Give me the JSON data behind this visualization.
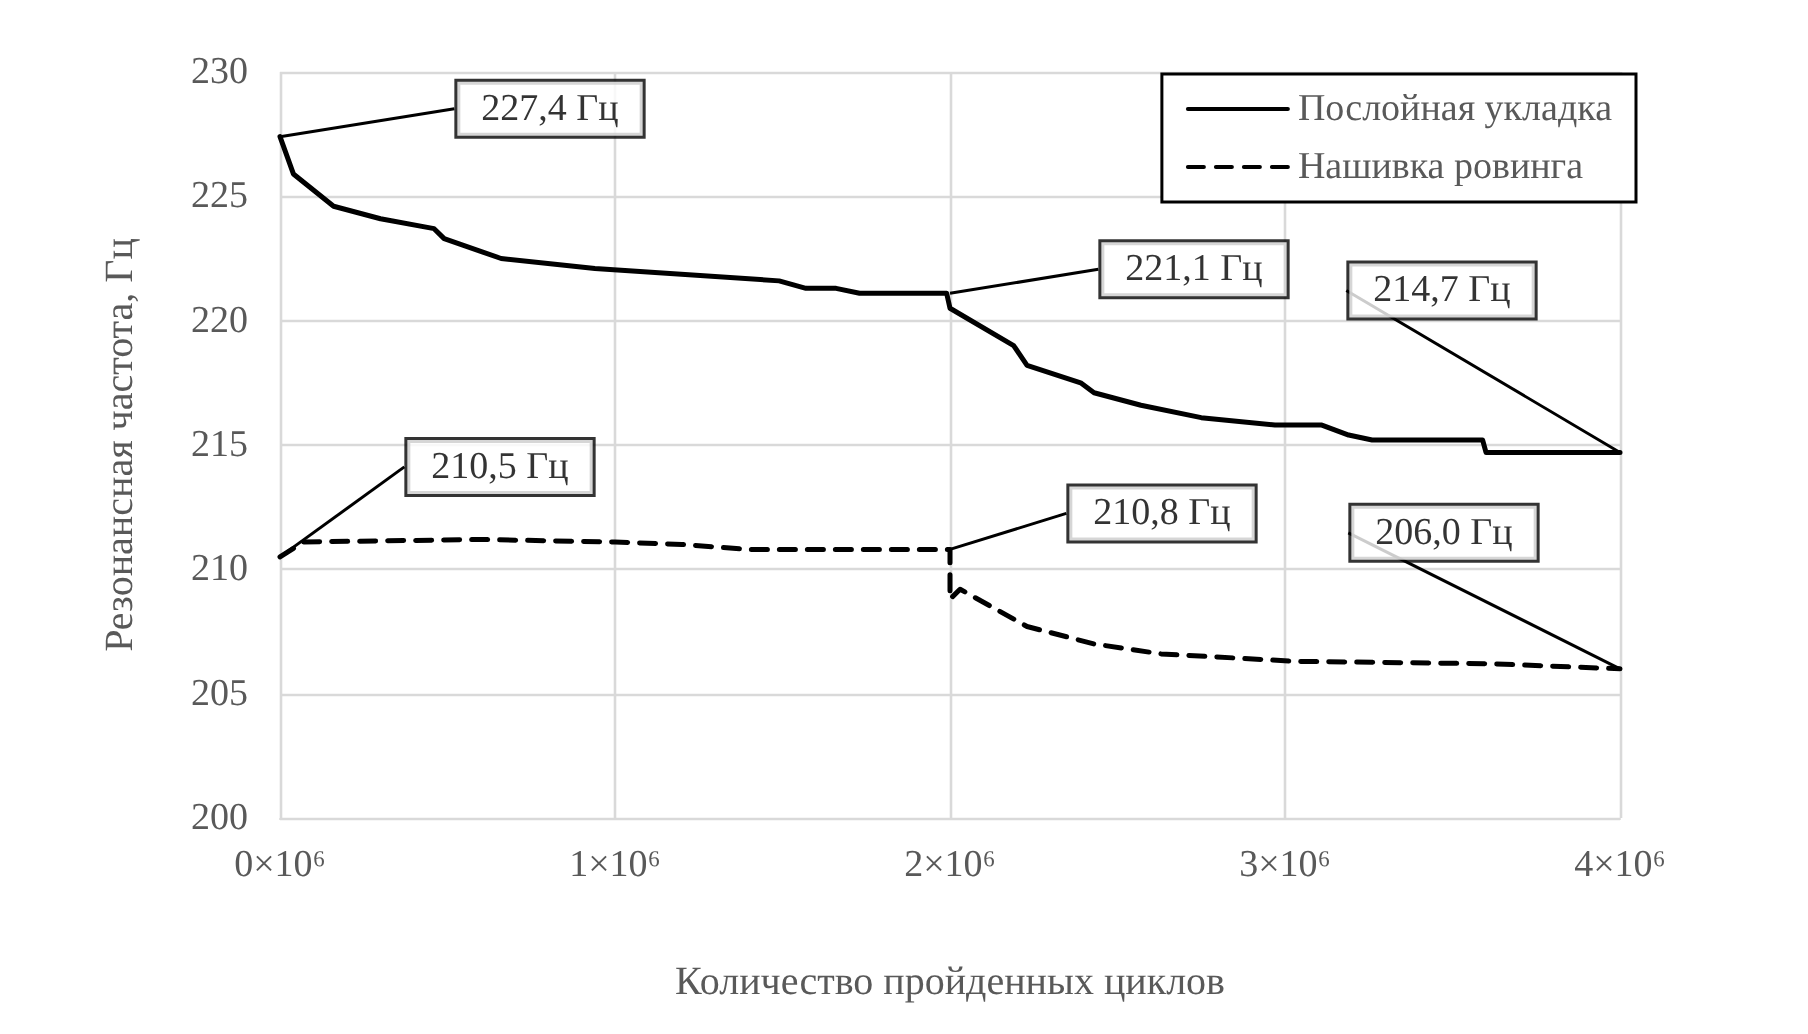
{
  "chart_data": {
    "type": "line",
    "xlabel": "Количество пройденных циклов",
    "ylabel": "Резонансная частота, Гц",
    "xlim": [
      0,
      4000000
    ],
    "xticks": [
      {
        "value": 0,
        "label": "0×10⁶"
      },
      {
        "value": 1000000,
        "label": "1×10⁶"
      },
      {
        "value": 2000000,
        "label": "2×10⁶"
      },
      {
        "value": 3000000,
        "label": "3×10⁶"
      },
      {
        "value": 4000000,
        "label": "4×10⁶"
      }
    ],
    "ylim": [
      200,
      230
    ],
    "yticks": [
      200,
      205,
      210,
      215,
      220,
      225,
      230
    ],
    "grid": true,
    "legend": "top right",
    "marker": "none",
    "series": [
      {
        "name": "Послойная укладка",
        "color": "#000000",
        "line_style": "solid",
        "x": [
          0,
          40000,
          160000,
          300000,
          460000,
          490000,
          660000,
          940000,
          1490000,
          1570000,
          1660000,
          1730000,
          1990000,
          2000000,
          2190000,
          2230000,
          2390000,
          2430000,
          2570000,
          2750000,
          2970000,
          3110000,
          3190000,
          3260000,
          3590000,
          3600000,
          4000000
        ],
        "values": [
          227.4,
          225.9,
          224.6,
          224.1,
          223.7,
          223.3,
          222.5,
          222.1,
          221.6,
          221.3,
          221.3,
          221.1,
          221.1,
          220.5,
          219.0,
          218.2,
          217.5,
          217.1,
          216.6,
          216.1,
          215.8,
          215.8,
          215.4,
          215.2,
          215.2,
          214.7,
          214.7
        ]
      },
      {
        "name": "Нашивка ровинга",
        "color": "#000000",
        "line_style": "dashed",
        "x": [
          0,
          70000,
          600000,
          1000000,
          1200000,
          1400000,
          2000000,
          2000000,
          2030000,
          2230000,
          2430000,
          2630000,
          3030000,
          3620000,
          4000000
        ],
        "values": [
          210.5,
          211.1,
          211.2,
          211.1,
          211.0,
          210.8,
          210.8,
          208.8,
          209.2,
          207.7,
          207.0,
          206.6,
          206.3,
          206.2,
          206.0
        ]
      }
    ],
    "annotations": [
      {
        "text": "227,4 Гц",
        "x": 0,
        "y": 227.4
      },
      {
        "text": "221,1 Гц",
        "x": 2000000,
        "y": 221.1
      },
      {
        "text": "214,7 Гц",
        "x": 4000000,
        "y": 214.7
      },
      {
        "text": "210,5 Гц",
        "x": 0,
        "y": 210.5
      },
      {
        "text": "210,8 Гц",
        "x": 2000000,
        "y": 210.8
      },
      {
        "text": "206,0 Гц",
        "x": 4000000,
        "y": 206.0
      }
    ]
  }
}
